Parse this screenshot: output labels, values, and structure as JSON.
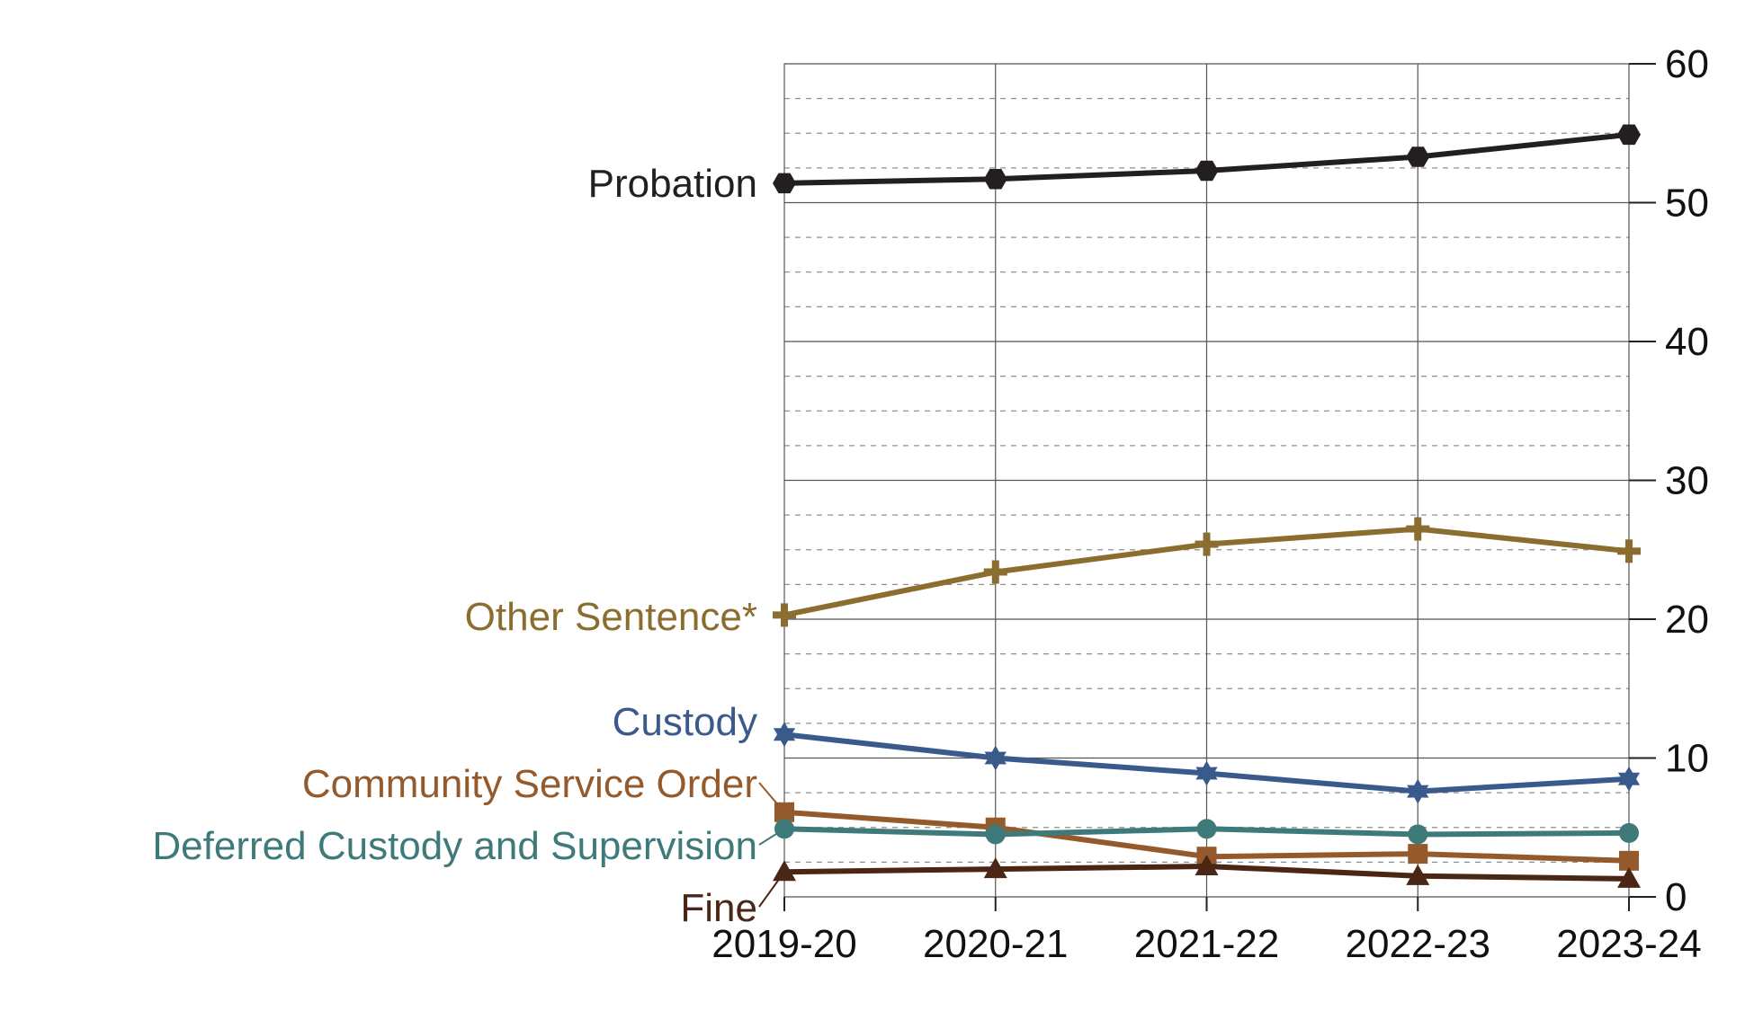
{
  "chart_data": {
    "type": "line",
    "categories": [
      "2019-20",
      "2020-21",
      "2021-22",
      "2022-23",
      "2023-24"
    ],
    "ylim": [
      0,
      60
    ],
    "yticks": [
      0,
      10,
      20,
      30,
      40,
      50,
      60
    ],
    "y_axis_side": "right",
    "grid": true,
    "legend": "direct labels at left end of each line",
    "series": [
      {
        "name": "Probation",
        "color": "#231f20",
        "marker": "hexagon",
        "values": [
          51.4,
          51.7,
          52.3,
          53.3,
          54.9
        ]
      },
      {
        "name": "Other Sentence*",
        "color": "#8b6d2f",
        "marker": "plus",
        "values": [
          20.3,
          23.4,
          25.4,
          26.5,
          24.9
        ]
      },
      {
        "name": "Custody",
        "color": "#3b5a8c",
        "marker": "star",
        "values": [
          11.7,
          10.0,
          8.9,
          7.6,
          8.5
        ]
      },
      {
        "name": "Community Service Order",
        "color": "#955a2c",
        "marker": "square",
        "values": [
          6.1,
          5.0,
          2.9,
          3.1,
          2.6
        ]
      },
      {
        "name": "Deferred Custody and Supervision",
        "color": "#3f7a7a",
        "marker": "circle",
        "values": [
          4.9,
          4.5,
          4.9,
          4.5,
          4.6
        ]
      },
      {
        "name": "Fine",
        "color": "#4a2614",
        "marker": "triangle",
        "values": [
          1.8,
          2.0,
          2.2,
          1.5,
          1.3
        ]
      }
    ]
  }
}
